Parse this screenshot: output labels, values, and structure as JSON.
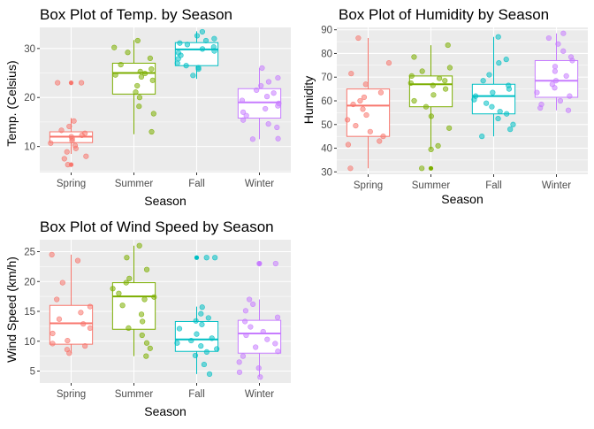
{
  "chart_data": [
    {
      "id": "temp",
      "type": "box",
      "title": "Box Plot of Temp. by Season",
      "xlabel": "Season",
      "ylabel": "Temp. (Celsius)",
      "categories": [
        "Spring",
        "Summer",
        "Fall",
        "Winter"
      ],
      "ylim": [
        4.7,
        34.3
      ],
      "yticks": [
        10,
        20,
        30
      ],
      "grid": true,
      "colors": [
        "#F8766D",
        "#7CAE00",
        "#00BFC4",
        "#C77CFF"
      ],
      "boxes": [
        {
          "category": "Spring",
          "whisker_low": 8.5,
          "q1": 10.8,
          "median": 12.0,
          "q3": 13.0,
          "whisker_high": 15.8,
          "outliers": [
            6.3,
            23.0
          ]
        },
        {
          "category": "Summer",
          "whisker_low": 12.5,
          "q1": 20.7,
          "median": 25.0,
          "q3": 27.0,
          "whisker_high": 31.7,
          "outliers": []
        },
        {
          "category": "Fall",
          "whisker_low": 23.8,
          "q1": 26.5,
          "median": 29.8,
          "q3": 31.2,
          "whisker_high": 33.5,
          "outliers": []
        },
        {
          "category": "Winter",
          "whisker_low": 11.5,
          "q1": 15.8,
          "median": 19.0,
          "q3": 21.8,
          "whisker_high": 26.0,
          "outliers": []
        }
      ],
      "points": [
        {
          "category": "Spring",
          "values": [
            23.0,
            23.0,
            15.2,
            14.1,
            13.3,
            12.7,
            12.3,
            12.0,
            11.6,
            11.2,
            10.7,
            10.2,
            9.6,
            8.9,
            8.0,
            7.5,
            6.3
          ]
        },
        {
          "category": "Summer",
          "values": [
            31.6,
            30.2,
            29.2,
            28.0,
            26.7,
            25.8,
            25.3,
            24.9,
            24.6,
            24.2,
            23.5,
            22.4,
            21.1,
            20.0,
            18.2,
            16.7,
            13.0
          ]
        },
        {
          "category": "Fall",
          "values": [
            33.4,
            32.6,
            32.0,
            31.6,
            31.1,
            30.8,
            30.3,
            29.9,
            29.5,
            29.1,
            28.6,
            27.9,
            27.0,
            26.5,
            26.1,
            25.8,
            24.5
          ]
        },
        {
          "category": "Winter",
          "values": [
            26.0,
            24.0,
            23.2,
            22.4,
            21.5,
            20.9,
            20.2,
            19.4,
            18.8,
            18.3,
            17.7,
            17.0,
            16.3,
            15.4,
            14.6,
            13.9,
            11.6,
            11.5
          ]
        }
      ]
    },
    {
      "id": "humidity",
      "type": "box",
      "title": "Box Plot of Humidity by Season",
      "xlabel": "Season",
      "ylabel": "Humidity",
      "categories": [
        "Spring",
        "Summer",
        "Fall",
        "Winter"
      ],
      "ylim": [
        29.0,
        91.0
      ],
      "yticks": [
        30,
        40,
        50,
        60,
        70,
        80,
        90
      ],
      "grid": true,
      "colors": [
        "#F8766D",
        "#7CAE00",
        "#00BFC4",
        "#C77CFF"
      ],
      "boxes": [
        {
          "category": "Spring",
          "whisker_low": 31.5,
          "q1": 45.0,
          "median": 58.0,
          "q3": 65.0,
          "whisker_high": 86.5,
          "outliers": []
        },
        {
          "category": "Summer",
          "whisker_low": 39.5,
          "q1": 57.5,
          "median": 67.0,
          "q3": 70.5,
          "whisker_high": 83.5,
          "outliers": [
            31.5
          ]
        },
        {
          "category": "Fall",
          "whisker_low": 45.0,
          "q1": 54.5,
          "median": 62.0,
          "q3": 67.0,
          "whisker_high": 87.0,
          "outliers": []
        },
        {
          "category": "Winter",
          "whisker_low": 56.0,
          "q1": 61.5,
          "median": 68.5,
          "q3": 77.0,
          "whisker_high": 88.5,
          "outliers": []
        }
      ],
      "points": [
        {
          "category": "Spring",
          "values": [
            86.5,
            76.0,
            71.5,
            67.0,
            63.5,
            61.5,
            60.0,
            58.5,
            56.5,
            54.0,
            52.0,
            49.5,
            47.0,
            45.0,
            43.0,
            41.5,
            31.5
          ]
        },
        {
          "category": "Summer",
          "values": [
            83.5,
            78.5,
            74.0,
            72.5,
            70.5,
            69.5,
            68.5,
            67.5,
            66.5,
            65.0,
            62.5,
            60.0,
            57.5,
            53.5,
            48.5,
            41.0,
            39.5,
            31.5
          ]
        },
        {
          "category": "Fall",
          "values": [
            87.0,
            77.5,
            76.0,
            71.0,
            68.5,
            66.5,
            65.0,
            63.5,
            62.0,
            60.5,
            59.0,
            57.5,
            55.5,
            54.5,
            52.5,
            50.0,
            48.0,
            45.0
          ]
        },
        {
          "category": "Winter",
          "values": [
            88.5,
            86.5,
            84.0,
            81.0,
            78.5,
            77.0,
            74.5,
            72.5,
            70.5,
            68.5,
            67.0,
            65.5,
            63.5,
            62.0,
            60.0,
            58.5,
            57.0,
            56.0
          ]
        }
      ]
    },
    {
      "id": "wind",
      "type": "box",
      "title": "Box Plot of Wind Speed by Season",
      "xlabel": "Season",
      "ylabel": "Wind Speed (km/h)",
      "categories": [
        "Spring",
        "Summer",
        "Fall",
        "Winter"
      ],
      "ylim": [
        3.0,
        27.0
      ],
      "yticks": [
        5,
        10,
        15,
        20,
        25
      ],
      "grid": true,
      "colors": [
        "#F8766D",
        "#7CAE00",
        "#00BFC4",
        "#C77CFF"
      ],
      "boxes": [
        {
          "category": "Spring",
          "whisker_low": 8.0,
          "q1": 9.5,
          "median": 13.0,
          "q3": 16.0,
          "whisker_high": 24.5,
          "outliers": []
        },
        {
          "category": "Summer",
          "whisker_low": 7.5,
          "q1": 12.0,
          "median": 17.5,
          "q3": 19.8,
          "whisker_high": 26.0,
          "outliers": []
        },
        {
          "category": "Fall",
          "whisker_low": 4.5,
          "q1": 8.3,
          "median": 10.3,
          "q3": 13.3,
          "whisker_high": 15.8,
          "outliers": [
            24.0
          ]
        },
        {
          "category": "Winter",
          "whisker_low": 4.0,
          "q1": 8.0,
          "median": 11.3,
          "q3": 13.5,
          "whisker_high": 17.0,
          "outliers": [
            23.0
          ]
        }
      ],
      "points": [
        {
          "category": "Spring",
          "values": [
            24.5,
            23.5,
            19.8,
            17.0,
            15.8,
            14.8,
            13.7,
            12.9,
            12.2,
            11.3,
            10.1,
            9.6,
            9.2,
            8.6,
            8.0
          ]
        },
        {
          "category": "Summer",
          "values": [
            26.0,
            24.0,
            22.0,
            20.5,
            19.8,
            18.8,
            18.0,
            17.4,
            17.0,
            16.0,
            14.5,
            13.3,
            12.2,
            11.0,
            9.7,
            8.8,
            7.5
          ]
        },
        {
          "category": "Fall",
          "values": [
            24.0,
            24.0,
            15.7,
            14.6,
            13.9,
            13.4,
            12.8,
            12.1,
            11.2,
            10.5,
            10.1,
            9.7,
            9.2,
            8.7,
            8.2,
            7.6,
            6.1,
            4.5
          ]
        },
        {
          "category": "Winter",
          "values": [
            23.0,
            23.0,
            17.0,
            16.2,
            15.1,
            14.0,
            13.3,
            12.4,
            11.6,
            11.0,
            10.3,
            9.6,
            9.0,
            8.3,
            7.5,
            6.5,
            5.5,
            4.8,
            4.0
          ]
        }
      ]
    }
  ]
}
